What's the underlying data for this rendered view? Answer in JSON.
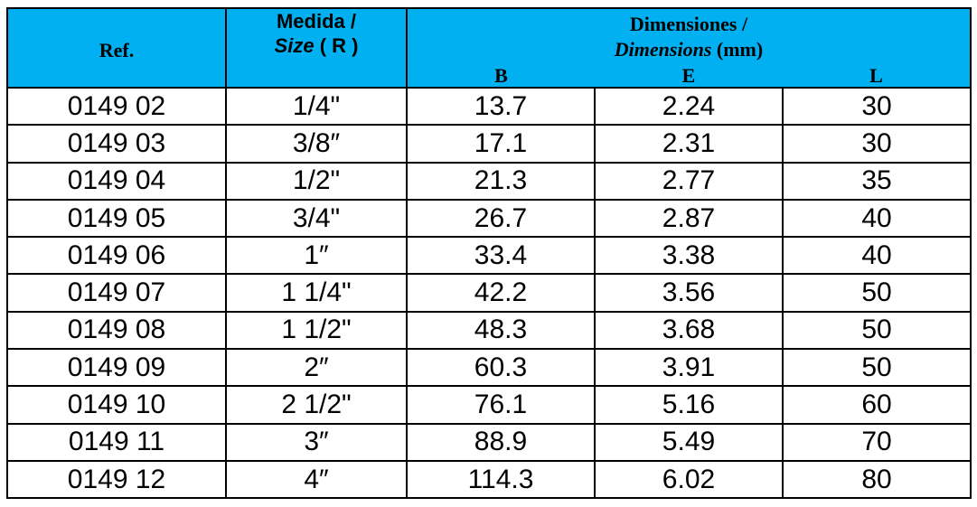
{
  "header": {
    "ref": "Ref.",
    "size": {
      "line1": "Medida /",
      "italic": "Size",
      "rest": "( R )"
    },
    "dimensions": {
      "line1": "Dimensiones /",
      "italic": "Dimensions",
      "rest": "(mm)"
    },
    "columns": [
      "B",
      "E",
      "L"
    ]
  },
  "table": {
    "rows": [
      [
        "0149 02",
        "1/4\"",
        "13.7",
        "2.24",
        "30"
      ],
      [
        "0149 03",
        "3/8″",
        "17.1",
        "2.31",
        "30"
      ],
      [
        "0149 04",
        "1/2\"",
        "21.3",
        "2.77",
        "35"
      ],
      [
        "0149 05",
        "3/4\"",
        "26.7",
        "2.87",
        "40"
      ],
      [
        "0149 06",
        "1″",
        "33.4",
        "3.38",
        "40"
      ],
      [
        "0149 07",
        "1 1/4\"",
        "42.2",
        "3.56",
        "50"
      ],
      [
        "0149 08",
        "1 1/2\"",
        "48.3",
        "3.68",
        "50"
      ],
      [
        "0149 09",
        "2″",
        "60.3",
        "3.91",
        "50"
      ],
      [
        "0149 10",
        "2 1/2\"",
        "76.1",
        "5.16",
        "60"
      ],
      [
        "0149 11",
        "3″",
        "88.9",
        "5.49",
        "70"
      ],
      [
        "0149 12",
        "4″",
        "114.3",
        "6.02",
        "80"
      ]
    ]
  }
}
